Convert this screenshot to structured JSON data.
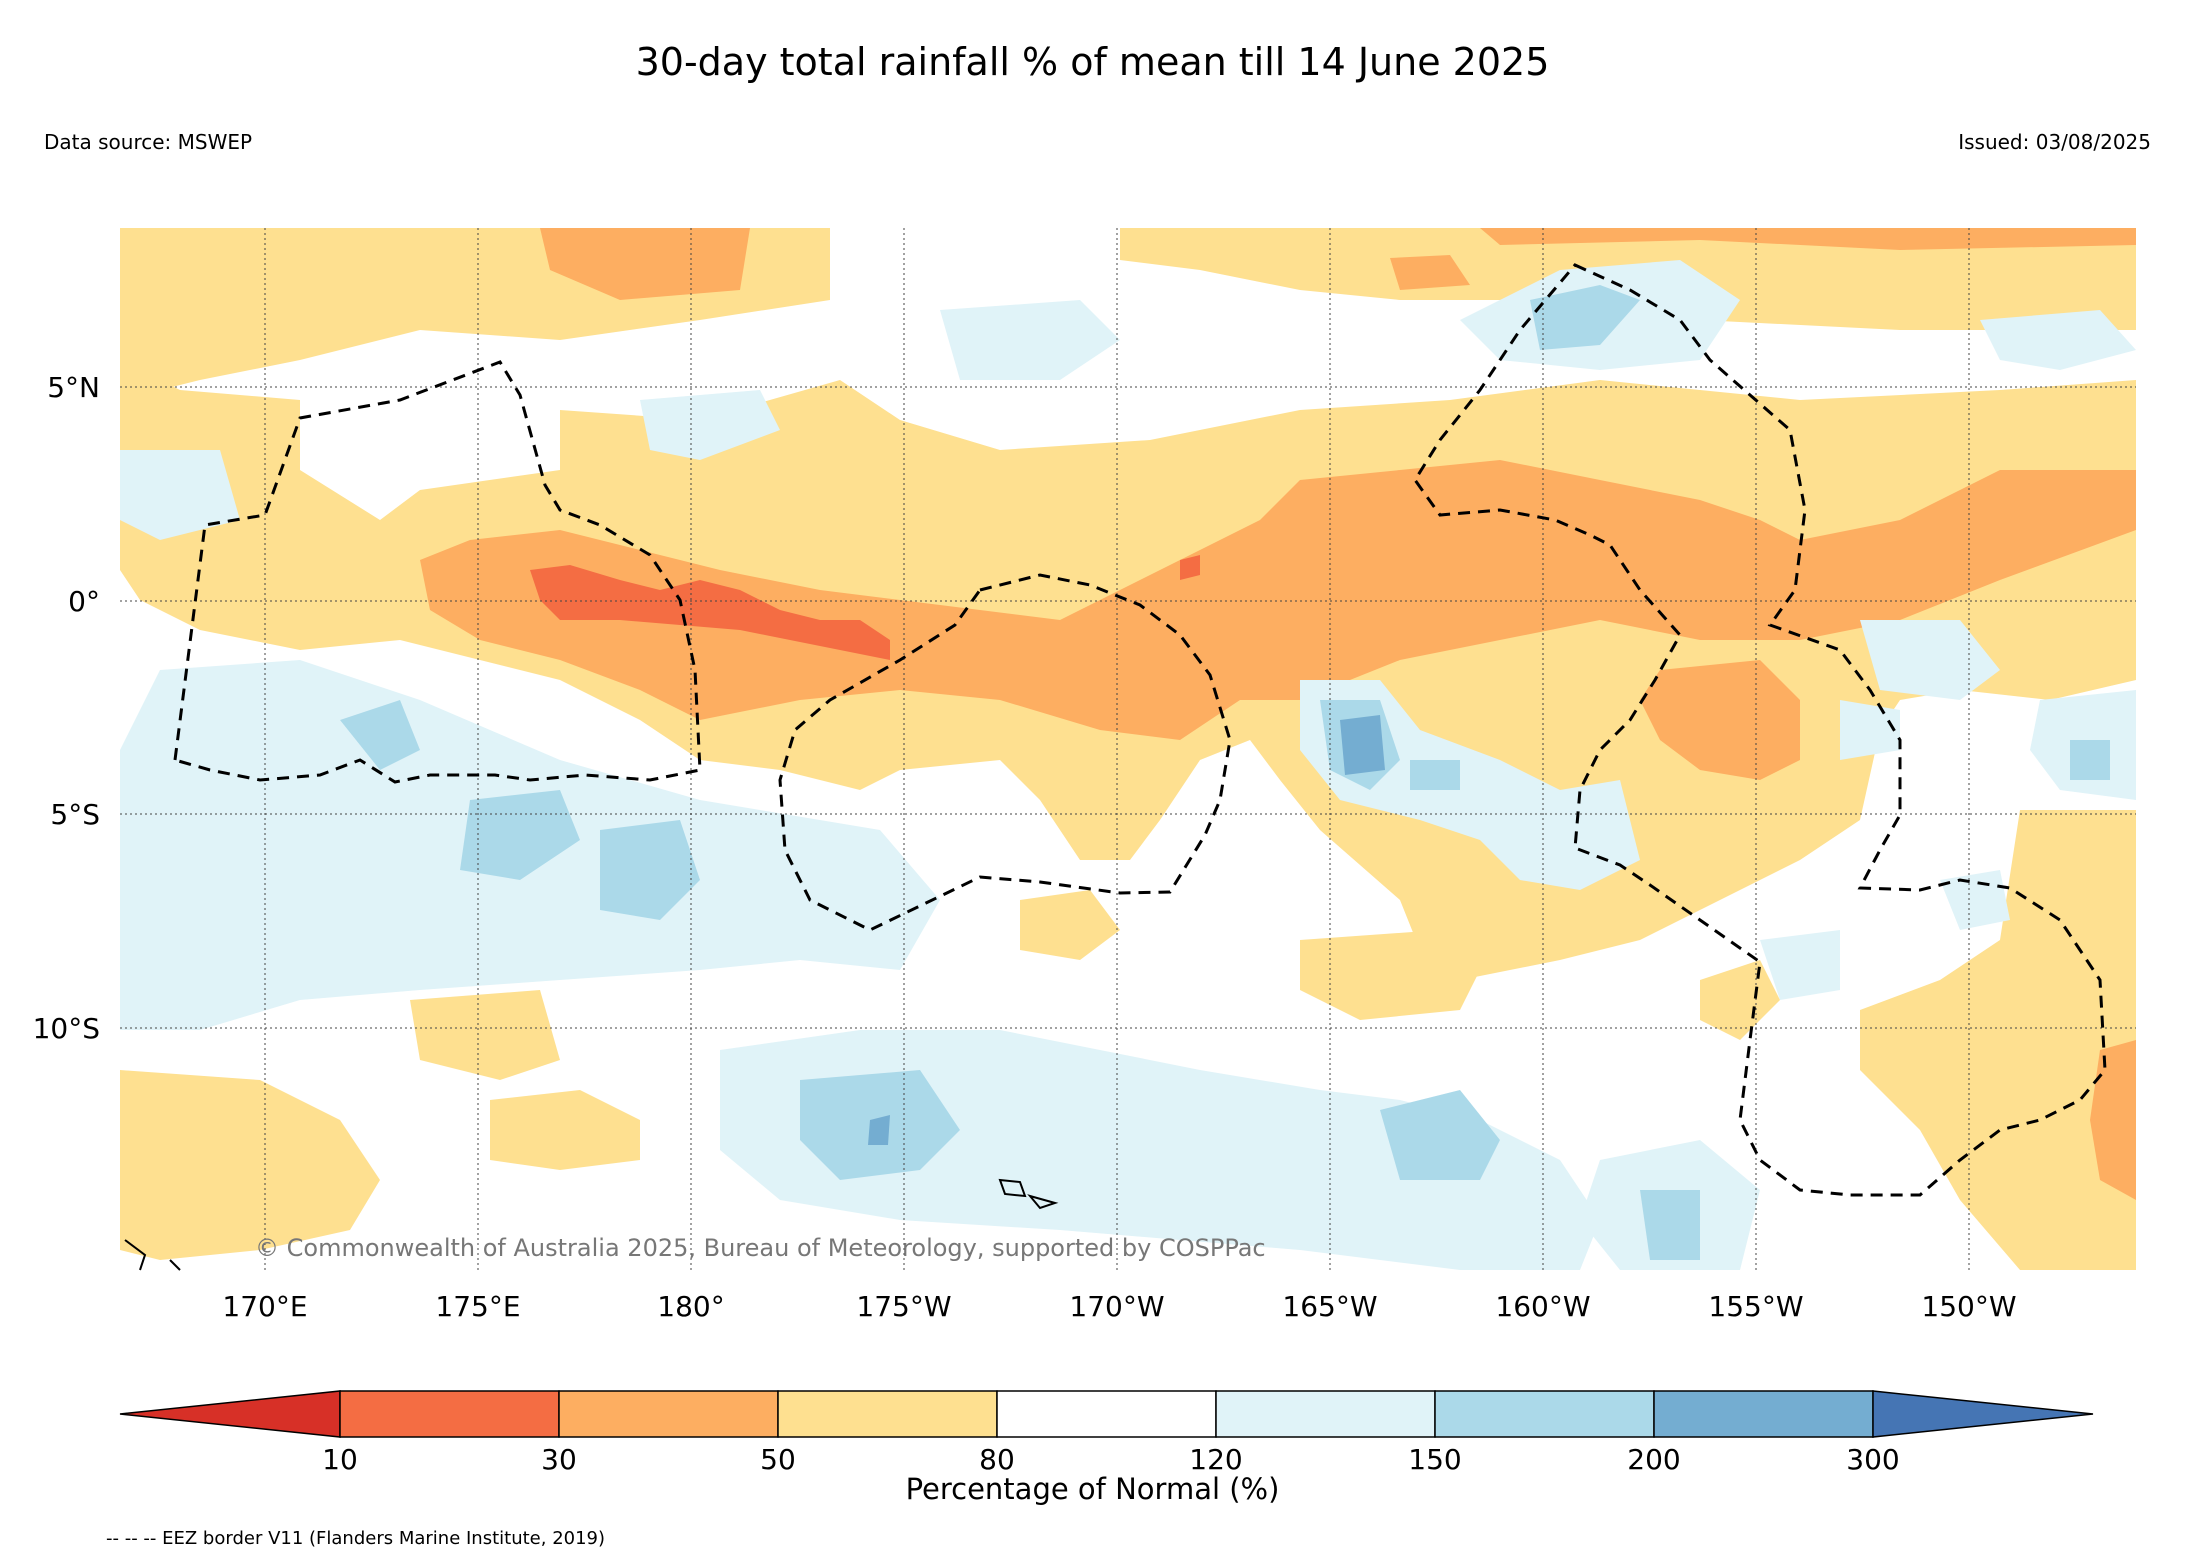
{
  "title": "30-day total rainfall % of mean till 14 June 2025",
  "data_source": "Data source: MSWEP",
  "issued": "Issued: 03/08/2025",
  "copyright": "© Commonwealth of Australia 2025, Bureau of Meteorology, supported by COSPPac",
  "footer_note": "-- -- -- EEZ border V11 (Flanders Marine Institute, 2019)",
  "map": {
    "lat_labels": [
      "5°N",
      "0°",
      "5°S",
      "10°S"
    ],
    "lon_labels": [
      "170°E",
      "175°E",
      "180°",
      "175°W",
      "170°W",
      "165°W",
      "160°W",
      "155°W",
      "150°W"
    ]
  },
  "colorbar": {
    "title": "Percentage of Normal (%)",
    "ticks": [
      "10",
      "30",
      "50",
      "80",
      "120",
      "150",
      "200",
      "300"
    ],
    "colors": [
      "#d73027",
      "#f46d43",
      "#fdae61",
      "#fee090",
      "#ffffff",
      "#e0f3f8",
      "#abd9e9",
      "#74add1",
      "#4575b4"
    ]
  }
}
